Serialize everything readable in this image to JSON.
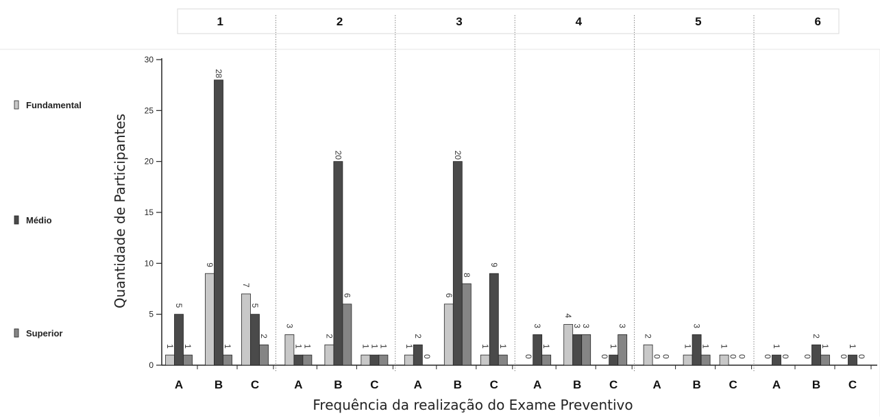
{
  "chart_data": {
    "type": "bar",
    "title": "",
    "xlabel": "Frequência da realização do Exame Preventivo",
    "ylabel": "Quantidade de Participantes",
    "ylim": [
      0,
      30
    ],
    "yticks": [
      0,
      5,
      10,
      15,
      20,
      25,
      30
    ],
    "groups": [
      "1",
      "2",
      "3",
      "4",
      "5",
      "6"
    ],
    "categories": [
      "A",
      "B",
      "C"
    ],
    "legend_position": "left",
    "grid": false,
    "series": [
      {
        "name": "Fundamental",
        "color": "#c8c8c8",
        "values": [
          [
            1,
            9,
            7
          ],
          [
            3,
            2,
            1
          ],
          [
            1,
            6,
            1
          ],
          [
            0,
            4,
            0
          ],
          [
            2,
            1,
            1
          ],
          [
            0,
            0,
            0
          ]
        ]
      },
      {
        "name": "Médio",
        "color": "#4a4a4a",
        "values": [
          [
            5,
            28,
            5
          ],
          [
            1,
            20,
            1
          ],
          [
            2,
            20,
            9
          ],
          [
            3,
            3,
            1
          ],
          [
            0,
            3,
            0
          ],
          [
            1,
            2,
            1
          ]
        ]
      },
      {
        "name": "Superior",
        "color": "#858585",
        "values": [
          [
            1,
            1,
            2
          ],
          [
            1,
            6,
            1
          ],
          [
            0,
            8,
            1
          ],
          [
            1,
            3,
            3
          ],
          [
            0,
            1,
            0
          ],
          [
            0,
            1,
            0
          ]
        ]
      }
    ]
  }
}
